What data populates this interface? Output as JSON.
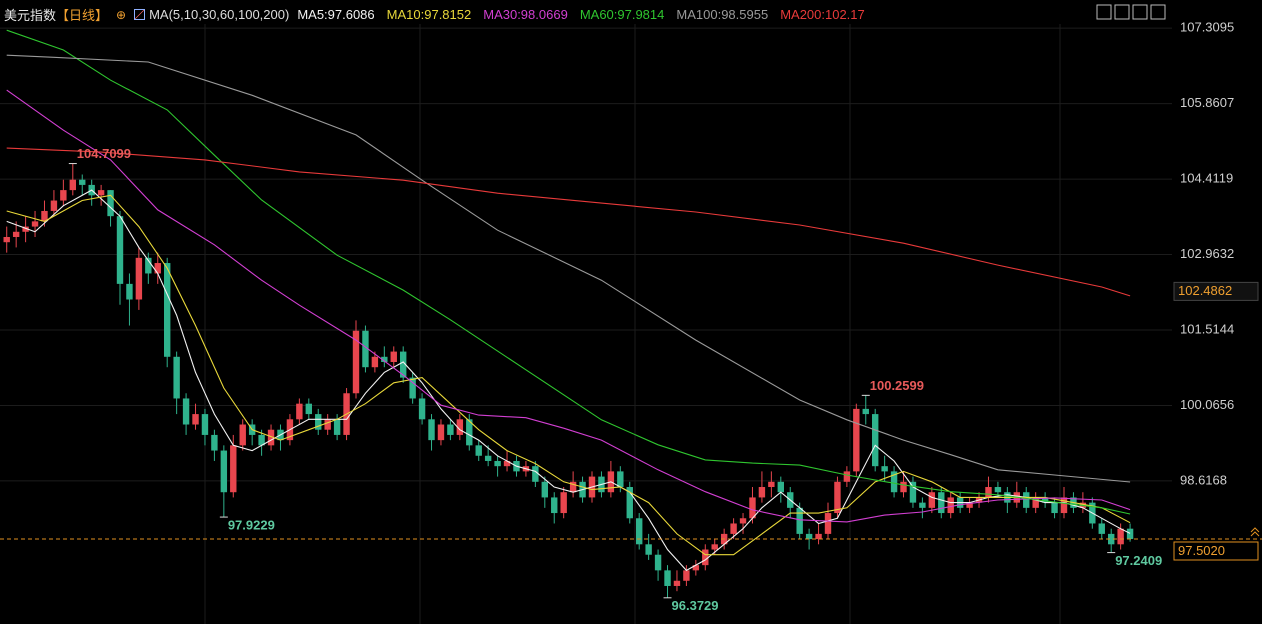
{
  "chart_data": {
    "type": "candlestick",
    "title": "美元指数",
    "period": "【日线】",
    "ma_label": "MA(5,10,30,60,100,200)",
    "ylim": [
      95.87,
      107.85
    ],
    "yticks": [
      98.6168,
      100.0656,
      101.5144,
      102.9632,
      104.4119,
      105.8607,
      107.3095
    ],
    "grid": true,
    "up_color": "#e8464e",
    "down_color": "#2fb38d",
    "last_price": {
      "value": 97.502,
      "label": "97.5020"
    },
    "price_marker": {
      "value": 102.4862,
      "label": "102.4862"
    },
    "candles": [
      [
        103.2,
        103.5,
        103.0,
        103.3
      ],
      [
        103.3,
        103.6,
        103.1,
        103.4
      ],
      [
        103.4,
        103.7,
        103.2,
        103.5
      ],
      [
        103.5,
        103.8,
        103.3,
        103.6
      ],
      [
        103.6,
        104.0,
        103.5,
        103.8
      ],
      [
        103.8,
        104.2,
        103.7,
        104.0
      ],
      [
        104.0,
        104.4,
        103.9,
        104.2
      ],
      [
        104.2,
        104.7099,
        104.1,
        104.4
      ],
      [
        104.4,
        104.5,
        104.1,
        104.3
      ],
      [
        104.3,
        104.4,
        103.9,
        104.1
      ],
      [
        104.1,
        104.3,
        103.9,
        104.2
      ],
      [
        104.2,
        104.2,
        103.5,
        103.7
      ],
      [
        103.7,
        103.8,
        102.0,
        102.4
      ],
      [
        102.4,
        102.6,
        101.6,
        102.1
      ],
      [
        102.1,
        103.1,
        101.9,
        102.9
      ],
      [
        102.9,
        103.0,
        102.4,
        102.6
      ],
      [
        102.6,
        103.0,
        102.4,
        102.8
      ],
      [
        102.8,
        102.9,
        100.8,
        101.0
      ],
      [
        101.0,
        101.1,
        99.9,
        100.2
      ],
      [
        100.2,
        100.3,
        99.5,
        99.7
      ],
      [
        99.7,
        100.1,
        99.6,
        99.9
      ],
      [
        99.9,
        100.0,
        99.3,
        99.5
      ],
      [
        99.5,
        99.6,
        99.0,
        99.2
      ],
      [
        99.2,
        99.3,
        97.9229,
        98.4
      ],
      [
        98.4,
        99.5,
        98.3,
        99.3
      ],
      [
        99.3,
        99.8,
        99.2,
        99.7
      ],
      [
        99.7,
        99.8,
        99.3,
        99.5
      ],
      [
        99.5,
        99.6,
        99.1,
        99.3
      ],
      [
        99.3,
        99.7,
        99.2,
        99.6
      ],
      [
        99.6,
        99.7,
        99.2,
        99.4
      ],
      [
        99.4,
        99.9,
        99.3,
        99.8
      ],
      [
        99.8,
        100.2,
        99.7,
        100.1
      ],
      [
        100.1,
        100.2,
        99.8,
        99.9
      ],
      [
        99.9,
        100.0,
        99.5,
        99.6
      ],
      [
        99.6,
        99.9,
        99.5,
        99.8
      ],
      [
        99.8,
        99.9,
        99.4,
        99.5
      ],
      [
        99.5,
        100.4,
        99.4,
        100.3
      ],
      [
        100.3,
        101.7,
        100.2,
        101.5
      ],
      [
        101.5,
        101.6,
        100.7,
        100.8
      ],
      [
        100.8,
        101.1,
        100.7,
        101.0
      ],
      [
        101.0,
        101.2,
        100.8,
        100.9
      ],
      [
        100.9,
        101.2,
        100.8,
        101.1
      ],
      [
        101.1,
        101.2,
        100.5,
        100.6
      ],
      [
        100.6,
        100.7,
        100.1,
        100.2
      ],
      [
        100.2,
        100.3,
        99.7,
        99.8
      ],
      [
        99.8,
        99.9,
        99.2,
        99.4
      ],
      [
        99.4,
        99.8,
        99.3,
        99.7
      ],
      [
        99.7,
        99.8,
        99.4,
        99.5
      ],
      [
        99.5,
        99.9,
        99.4,
        99.8
      ],
      [
        99.8,
        99.9,
        99.2,
        99.3
      ],
      [
        99.3,
        99.4,
        99.0,
        99.1
      ],
      [
        99.1,
        99.3,
        98.9,
        99.0
      ],
      [
        99.0,
        99.1,
        98.7,
        98.9
      ],
      [
        98.9,
        99.2,
        98.8,
        99.0
      ],
      [
        99.0,
        99.1,
        98.7,
        98.8
      ],
      [
        98.8,
        99.0,
        98.7,
        98.9
      ],
      [
        98.9,
        99.0,
        98.5,
        98.6
      ],
      [
        98.6,
        98.7,
        98.1,
        98.3
      ],
      [
        98.3,
        98.4,
        97.8,
        98.0
      ],
      [
        98.0,
        98.5,
        97.9,
        98.4
      ],
      [
        98.4,
        98.8,
        98.3,
        98.6
      ],
      [
        98.6,
        98.7,
        98.2,
        98.3
      ],
      [
        98.3,
        98.8,
        98.2,
        98.7
      ],
      [
        98.7,
        98.8,
        98.3,
        98.4
      ],
      [
        98.4,
        99.0,
        98.3,
        98.8
      ],
      [
        98.8,
        98.9,
        98.4,
        98.5
      ],
      [
        98.5,
        98.6,
        97.8,
        97.9
      ],
      [
        97.9,
        98.0,
        97.3,
        97.4
      ],
      [
        97.4,
        97.6,
        97.1,
        97.2
      ],
      [
        97.2,
        97.3,
        96.7,
        96.9
      ],
      [
        96.9,
        97.0,
        96.3729,
        96.6
      ],
      [
        96.6,
        96.9,
        96.5,
        96.7
      ],
      [
        96.7,
        97.0,
        96.6,
        96.9
      ],
      [
        96.9,
        97.1,
        96.8,
        97.0
      ],
      [
        97.0,
        97.4,
        96.9,
        97.3
      ],
      [
        97.3,
        97.5,
        97.2,
        97.4
      ],
      [
        97.4,
        97.7,
        97.3,
        97.6
      ],
      [
        97.6,
        97.9,
        97.5,
        97.8
      ],
      [
        97.8,
        98.0,
        97.6,
        97.9
      ],
      [
        97.9,
        98.5,
        97.8,
        98.3
      ],
      [
        98.3,
        98.8,
        98.2,
        98.5
      ],
      [
        98.5,
        98.8,
        98.3,
        98.6
      ],
      [
        98.6,
        98.7,
        98.2,
        98.4
      ],
      [
        98.4,
        98.5,
        97.9,
        98.1
      ],
      [
        98.1,
        98.2,
        97.5,
        97.6
      ],
      [
        97.6,
        97.7,
        97.3,
        97.5
      ],
      [
        97.5,
        97.8,
        97.4,
        97.6
      ],
      [
        97.6,
        98.2,
        97.5,
        98.0
      ],
      [
        98.0,
        98.7,
        97.9,
        98.6
      ],
      [
        98.6,
        98.9,
        98.5,
        98.8
      ],
      [
        98.8,
        100.1,
        98.7,
        100.0
      ],
      [
        100.0,
        100.2599,
        99.7,
        99.9
      ],
      [
        99.9,
        100.0,
        98.8,
        98.9
      ],
      [
        98.9,
        99.1,
        98.6,
        98.8
      ],
      [
        98.8,
        98.9,
        98.3,
        98.4
      ],
      [
        98.4,
        98.8,
        98.3,
        98.6
      ],
      [
        98.6,
        98.7,
        98.1,
        98.2
      ],
      [
        98.2,
        98.3,
        97.9,
        98.1
      ],
      [
        98.1,
        98.5,
        98.0,
        98.4
      ],
      [
        98.4,
        98.5,
        97.9,
        98.0
      ],
      [
        98.0,
        98.4,
        97.9,
        98.3
      ],
      [
        98.3,
        98.4,
        98.0,
        98.1
      ],
      [
        98.1,
        98.3,
        98.0,
        98.2
      ],
      [
        98.2,
        98.4,
        98.1,
        98.3
      ],
      [
        98.3,
        98.7,
        98.2,
        98.5
      ],
      [
        98.5,
        98.6,
        98.3,
        98.4
      ],
      [
        98.4,
        98.5,
        98.0,
        98.2
      ],
      [
        98.2,
        98.6,
        98.1,
        98.4
      ],
      [
        98.4,
        98.5,
        98.0,
        98.1
      ],
      [
        98.1,
        98.4,
        98.0,
        98.3
      ],
      [
        98.3,
        98.4,
        98.1,
        98.2
      ],
      [
        98.2,
        98.3,
        97.9,
        98.0
      ],
      [
        98.0,
        98.5,
        97.9,
        98.3
      ],
      [
        98.3,
        98.4,
        98.0,
        98.1
      ],
      [
        98.1,
        98.4,
        98.0,
        98.2
      ],
      [
        98.2,
        98.3,
        97.7,
        97.8
      ],
      [
        97.8,
        97.9,
        97.5,
        97.6
      ],
      [
        97.6,
        97.7,
        97.2409,
        97.4
      ],
      [
        97.4,
        97.8,
        97.3,
        97.7
      ],
      [
        97.7,
        97.8,
        97.45,
        97.502
      ]
    ],
    "series": [
      {
        "name": "MA5:97.6086",
        "color": "#f2f2f2",
        "x": [
          0,
          3,
          6,
          9,
          12,
          14,
          16,
          18,
          20,
          22,
          24,
          26,
          28,
          30,
          32,
          34,
          36,
          38,
          40,
          42,
          44,
          46,
          48,
          50,
          52,
          54,
          56,
          58,
          60,
          62,
          64,
          66,
          68,
          70,
          72,
          74,
          76,
          78,
          80,
          82,
          84,
          86,
          88,
          90,
          92,
          94,
          96,
          98,
          100,
          102,
          104,
          106,
          108,
          110,
          112,
          114,
          116,
          118,
          119
        ],
        "values": [
          103.6,
          103.4,
          103.9,
          104.2,
          103.7,
          103.1,
          102.6,
          101.8,
          100.7,
          99.9,
          99.3,
          99.2,
          99.4,
          99.6,
          99.8,
          99.8,
          99.8,
          100.3,
          100.7,
          100.9,
          100.5,
          100.0,
          99.6,
          99.4,
          99.1,
          98.9,
          98.8,
          98.5,
          98.4,
          98.5,
          98.6,
          98.4,
          97.9,
          97.3,
          96.9,
          97.1,
          97.4,
          97.7,
          98.1,
          98.4,
          98.1,
          97.8,
          97.9,
          98.6,
          99.3,
          99.0,
          98.5,
          98.3,
          98.2,
          98.2,
          98.3,
          98.35,
          98.3,
          98.2,
          98.2,
          98.1,
          97.9,
          97.7,
          97.6086
        ]
      },
      {
        "name": "MA10:97.8152",
        "color": "#e8d83a",
        "x": [
          0,
          4,
          8,
          11,
          14,
          17,
          20,
          23,
          26,
          29,
          32,
          35,
          38,
          41,
          44,
          47,
          50,
          53,
          56,
          59,
          62,
          65,
          68,
          71,
          74,
          77,
          80,
          83,
          86,
          89,
          92,
          95,
          98,
          101,
          104,
          107,
          110,
          113,
          116,
          119
        ],
        "values": [
          103.8,
          103.6,
          104.0,
          104.1,
          103.5,
          102.7,
          101.6,
          100.4,
          99.6,
          99.4,
          99.6,
          99.8,
          100.1,
          100.5,
          100.6,
          100.1,
          99.6,
          99.2,
          98.95,
          98.6,
          98.45,
          98.5,
          98.2,
          97.6,
          97.2,
          97.2,
          97.6,
          98.0,
          98.0,
          98.1,
          98.6,
          98.8,
          98.6,
          98.3,
          98.3,
          98.3,
          98.3,
          98.2,
          98.1,
          97.8152
        ]
      },
      {
        "name": "MA30:98.0669",
        "color": "#d23fd2",
        "x": [
          0,
          6,
          11,
          16,
          22,
          27,
          31,
          37,
          42,
          46,
          50,
          55,
          59,
          63,
          69,
          74,
          79,
          84,
          89,
          93,
          97,
          101,
          105,
          111,
          116,
          119
        ],
        "values": [
          106.12,
          105.35,
          104.78,
          103.82,
          103.15,
          102.47,
          101.99,
          101.32,
          100.65,
          100.07,
          99.88,
          99.83,
          99.63,
          99.4,
          98.83,
          98.41,
          98.06,
          97.87,
          97.83,
          97.96,
          98.02,
          98.16,
          98.25,
          98.29,
          98.25,
          98.0669
        ]
      },
      {
        "name": "MA60:97.9814",
        "color": "#2fc52f",
        "x": [
          0,
          6,
          11,
          17,
          22,
          27,
          35,
          42,
          47,
          55,
          63,
          69,
          74,
          79,
          84,
          89,
          95,
          100,
          105,
          111,
          116,
          119
        ],
        "values": [
          107.27,
          106.89,
          106.31,
          105.74,
          104.87,
          104.01,
          102.95,
          102.28,
          101.71,
          100.75,
          99.79,
          99.31,
          99.02,
          98.96,
          98.92,
          98.73,
          98.54,
          98.41,
          98.35,
          98.21,
          98.1,
          97.9814
        ]
      },
      {
        "name": "MA100:98.5955",
        "color": "#9a9a9a",
        "x": [
          0,
          5,
          15,
          26,
          37,
          44,
          52,
          63,
          73,
          84,
          89,
          95,
          100,
          105,
          111,
          119
        ],
        "values": [
          106.79,
          106.75,
          106.66,
          106.02,
          105.26,
          104.39,
          103.43,
          102.47,
          101.32,
          100.17,
          99.79,
          99.4,
          99.12,
          98.83,
          98.73,
          98.5955
        ]
      },
      {
        "name": "MA200:102.17",
        "color": "#e83a3a",
        "x": [
          0,
          10,
          21,
          31,
          42,
          52,
          63,
          73,
          84,
          95,
          105,
          116,
          119
        ],
        "values": [
          105.007,
          104.93,
          104.78,
          104.55,
          104.39,
          104.14,
          103.95,
          103.78,
          103.53,
          103.18,
          102.76,
          102.34,
          102.17
        ]
      }
    ]
  }
}
